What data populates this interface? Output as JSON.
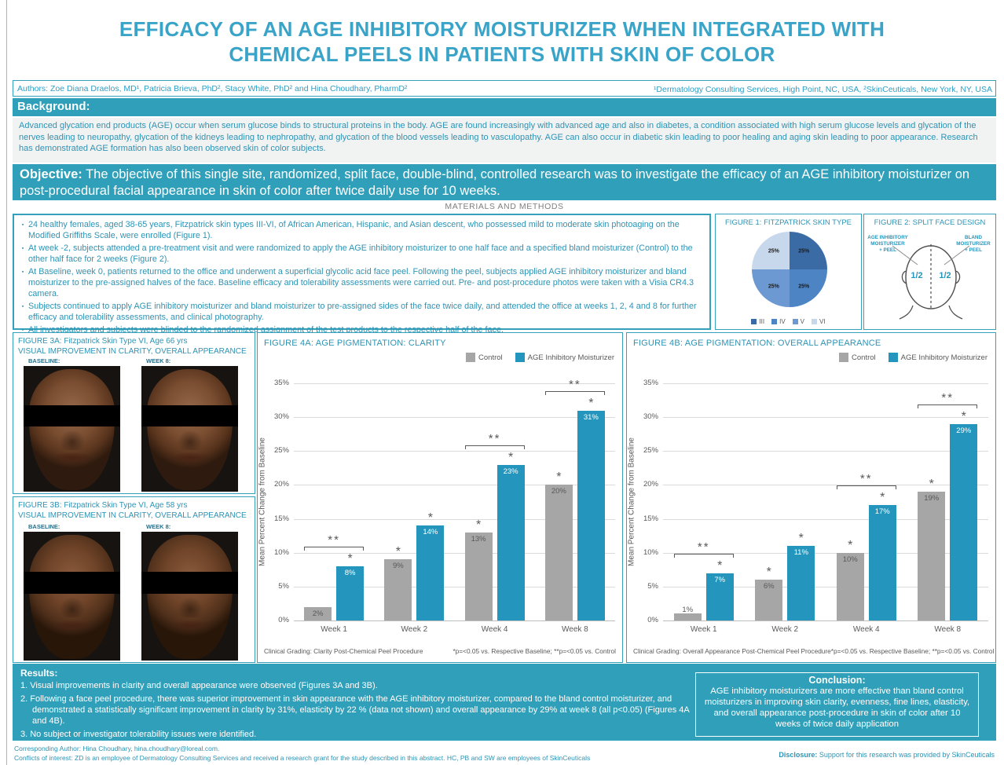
{
  "poster": {
    "title_line1": "EFFICACY OF AN AGE INHIBITORY MOISTURIZER WHEN INTEGRATED WITH",
    "title_line2": "CHEMICAL PEELS IN PATIENTS WITH SKIN OF COLOR",
    "authors": "Authors: Zoe Diana Draelos, MD¹, Patricia Brieva, PhD², Stacy White, PhD² and Hina Choudhary, PharmD²",
    "affiliations": "¹Dermatology Consulting Services, High Point, NC, USA, ²SkinCeuticals, New York, NY, USA"
  },
  "background": {
    "heading": "Background:",
    "body": "Advanced glycation end products (AGE) occur when serum glucose binds to structural proteins in the body.  AGE are found increasingly with advanced age and also in diabetes, a condition associated with high serum glucose levels and glycation of the nerves leading to neuropathy, glycation of the kidneys leading to nephropathy, and glycation of the blood vessels leading to vasculopathy.  AGE can also occur in diabetic skin leading to poor healing and aging skin leading to poor appearance.  Research has demonstrated AGE formation has also been observed skin of color subjects."
  },
  "objective": {
    "label": "Objective:",
    "body": " The objective of this single site, randomized, split face, double-blind, controlled research was to investigate the efficacy of an AGE inhibitory moisturizer on post-procedural facial appearance in skin of color after twice daily use for 10 weeks."
  },
  "methods": {
    "heading": "MATERIALS AND METHODS",
    "bullet_glyph": "▪",
    "bullets": [
      "24 healthy females, aged 38-65 years, Fitzpatrick skin types III-VI, of African American, Hispanic, and Asian descent, who possessed mild to moderate skin photoaging on the Modified Griffiths Scale, were enrolled (Figure 1).",
      "At week -2, subjects attended a pre-treatment visit and were randomized to apply the AGE inhibitory moisturizer to one half face and a specified bland moisturizer (Control) to the other half face for 2 weeks (Figure 2).",
      "At Baseline, week 0, patients returned to the office and underwent a superficial glycolic acid face peel. Following the peel, subjects applied AGE inhibitory moisturizer and bland moisturizer to the pre-assigned halves of the face. Baseline efficacy and tolerability assessments were carried out. Pre- and post-procedure photos were taken with a Visia CR4.3 camera.",
      "Subjects continued to apply AGE inhibitory moisturizer and bland moisturizer to pre-assigned sides of the face twice daily, and attended the office at weeks 1, 2, 4 and 8 for further efficacy and tolerability assessments, and clinical photography.",
      "All investigators and subjects were blinded to the randomized assignment of the test products to the respective half of the face."
    ]
  },
  "figure2": {
    "title": "FIGURE 2: SPLIT FACE DESIGN",
    "left_label": "AGE INHIBITORY\nMOISTURIZER\n+ PEEL",
    "right_label": "BLAND\nMOISTURIZER\n+ PEEL",
    "left_half": "1/2",
    "right_half": "1/2"
  },
  "figure3a": {
    "title": "FIGURE 3A: Fitzpatrick Skin Type VI, Age 66 yrs",
    "subtitle": "VISUAL IMPROVEMENT IN CLARITY, OVERALL APPEARANCE",
    "baseline_label": "BASELINE:",
    "week8_label": "WEEK 8:"
  },
  "figure3b": {
    "title": "FIGURE 3B:  Fitzpatrick Skin Type VI, Age 58 yrs",
    "subtitle": "VISUAL IMPROVEMENT IN CLARITY, OVERALL APPEARANCE",
    "baseline_label": "BASELINE:",
    "week8_label": "WEEK 8:"
  },
  "chart_data": [
    {
      "type": "bar",
      "title": "FIGURE 4A: AGE PIGMENTATION: CLARITY",
      "categories": [
        "Week 1",
        "Week 2",
        "Week 4",
        "Week 8"
      ],
      "series": [
        {
          "name": "Control",
          "color": "#A6A6A6",
          "values": [
            2,
            9,
            13,
            20
          ],
          "stars": [
            false,
            true,
            true,
            true
          ]
        },
        {
          "name": "AGE Inhibitory Moisturizer",
          "color": "#2496BD",
          "values": [
            8,
            14,
            23,
            31
          ],
          "stars": [
            true,
            true,
            true,
            true
          ]
        }
      ],
      "brackets": [
        true,
        false,
        true,
        true
      ],
      "ylabel": "Mean Percent Change from Baseline",
      "ylim": [
        0,
        35
      ],
      "ytick_step": 5,
      "footnote_left": "Clinical Grading: Clarity Post-Chemical Peel Procedure",
      "footnote_right": "*p=<0.05 vs. Respective Baseline; **p=<0.05 vs. Control"
    },
    {
      "type": "bar",
      "title": "FIGURE 4B: AGE PIGMENTATION: OVERALL APPEARANCE",
      "categories": [
        "Week 1",
        "Week 2",
        "Week 4",
        "Week 8"
      ],
      "series": [
        {
          "name": "Control",
          "color": "#A6A6A6",
          "values": [
            1,
            6,
            10,
            19
          ],
          "stars": [
            false,
            true,
            true,
            true
          ]
        },
        {
          "name": "AGE Inhibitory Moisturizer",
          "color": "#2496BD",
          "values": [
            7,
            11,
            17,
            29
          ],
          "stars": [
            true,
            true,
            true,
            true
          ]
        }
      ],
      "brackets": [
        true,
        false,
        true,
        true
      ],
      "ylabel": "Mean Percent Change from Baseline",
      "ylim": [
        0,
        35
      ],
      "ytick_step": 5,
      "footnote_left": "Clinical Grading: Overall Appearance Post-Chemical Peel Procedure",
      "footnote_right": "*p=<0.05 vs. Respective Baseline; **p=<0.05 vs. Control"
    },
    {
      "type": "pie",
      "title": "FIGURE 1: FITZPATRICK SKIN TYPE",
      "slices": [
        {
          "label": "III",
          "value": 25,
          "color": "#3A6BA5"
        },
        {
          "label": "IV",
          "value": 25,
          "color": "#4C84C4"
        },
        {
          "label": "V",
          "value": 25,
          "color": "#6D99D3"
        },
        {
          "label": "VI",
          "value": 25,
          "color": "#C7D8ED"
        }
      ]
    }
  ],
  "results": {
    "heading": "Results:",
    "items": [
      "1. Visual improvements in clarity and overall appearance were observed (Figures 3A and 3B).",
      "2. Following a face peel procedure, there was superior improvement in skin appearance with the AGE inhibitory moisturizer, compared to the bland control moisturizer, and demonstrated a statistically significant improvement in clarity by 31%,  elasticity by 22 % (data not shown) and overall appearance by 29% at week 8 (all p<0.05) (Figures 4A and 4B).",
      "3. No subject or investigator tolerability issues were identified."
    ]
  },
  "conclusion": {
    "heading": "Conclusion:",
    "body": "AGE inhibitory moisturizers are more effective than bland control moisturizers in improving skin clarity, evenness, fine lines, elasticity, and overall appearance post-procedure in skin of color after 10 weeks of twice daily application"
  },
  "footer": {
    "corresponding": "Corresponding Author: Hina Choudhary, hina.choudhary@loreal.com.",
    "conflicts": "Conflicts of interest: ZD is an employee of Dermatology Consulting Services and received a research grant for the study described in this abstract. HC, PB and SW are employees of SkinCeuticals",
    "disclosure_label": "Disclosure:",
    "disclosure": " Support for this research was provided by SkinCeuticals"
  },
  "colors": {
    "teal_band": "#2F9FBA",
    "teal_text": "#2E93B4",
    "title_teal": "#3AA4C8",
    "bar_teal": "#2496BD",
    "bar_gray": "#A6A6A6"
  }
}
